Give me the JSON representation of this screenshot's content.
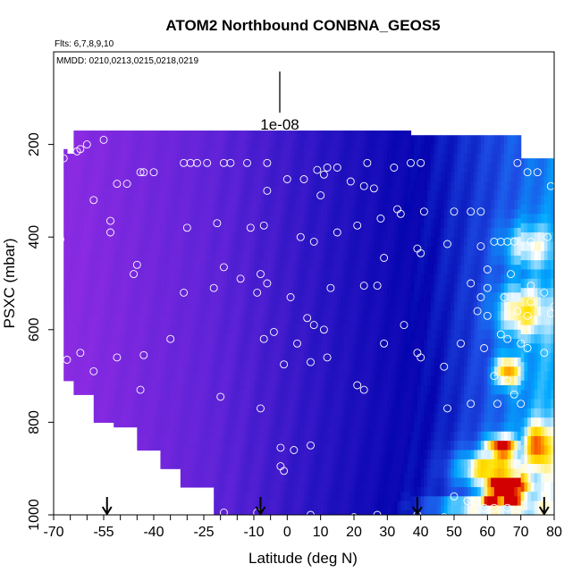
{
  "chart_data": {
    "type": "heatmap",
    "title": "ATOM2 Northbound CONBNA_GEOS5",
    "flights_note": "Flts: 6,7,8,9,10",
    "dates_note": "MMDD: 0210,0213,0215,0218,0219",
    "xlabel": "Latitude (deg N)",
    "ylabel": "PSXC (mbar)",
    "xlim": [
      -70,
      80
    ],
    "ylim": [
      1000,
      0
    ],
    "x_ticks": [
      -70,
      -55,
      -40,
      -25,
      -10,
      0,
      10,
      20,
      30,
      40,
      50,
      60,
      70,
      80
    ],
    "x_tick_labels": [
      "-70",
      "-55",
      "-40",
      "-25",
      "-10",
      "0",
      "10",
      "20",
      "30",
      "40",
      "50",
      "60",
      "70",
      "80"
    ],
    "x_minor_ticks": [
      -65,
      -60,
      -50,
      -45,
      -35,
      -30,
      -20,
      -15,
      -5
    ],
    "y_ticks": [
      200,
      400,
      600,
      800,
      1000
    ],
    "y_tick_labels": [
      "200",
      "400",
      "600",
      "800",
      "1000"
    ],
    "scale_bar_label": "1e-08",
    "arrow_latitudes": [
      -54,
      -8,
      39,
      77
    ],
    "colors": {
      "low": "#8a2be2",
      "mid": "#1010c0",
      "high": "#ff3300",
      "text": "#000000"
    },
    "columns": [
      {
        "lat0": -67,
        "lat1": -66,
        "ptop": 210,
        "pbot": 710
      },
      {
        "lat0": -66,
        "lat1": -64,
        "ptop": 220,
        "pbot": 710
      },
      {
        "lat0": -64,
        "lat1": -58,
        "ptop": 170,
        "pbot": 740
      },
      {
        "lat0": -58,
        "lat1": -52,
        "ptop": 170,
        "pbot": 800
      },
      {
        "lat0": -52,
        "lat1": -45,
        "ptop": 170,
        "pbot": 810
      },
      {
        "lat0": -45,
        "lat1": -38,
        "ptop": 170,
        "pbot": 860
      },
      {
        "lat0": -38,
        "lat1": -32,
        "ptop": 170,
        "pbot": 900
      },
      {
        "lat0": -32,
        "lat1": -22,
        "ptop": 170,
        "pbot": 940
      },
      {
        "lat0": -22,
        "lat1": -16,
        "ptop": 170,
        "pbot": 1000
      },
      {
        "lat0": -16,
        "lat1": -10,
        "ptop": 170,
        "pbot": 1000
      },
      {
        "lat0": -10,
        "lat1": -4,
        "ptop": 170,
        "pbot": 1000
      },
      {
        "lat0": -4,
        "lat1": 2,
        "ptop": 170,
        "pbot": 1000
      },
      {
        "lat0": 2,
        "lat1": 8,
        "ptop": 170,
        "pbot": 1000
      },
      {
        "lat0": 8,
        "lat1": 14,
        "ptop": 170,
        "pbot": 1000
      },
      {
        "lat0": 14,
        "lat1": 20,
        "ptop": 170,
        "pbot": 1000
      },
      {
        "lat0": 20,
        "lat1": 26,
        "ptop": 170,
        "pbot": 1000
      },
      {
        "lat0": 26,
        "lat1": 32,
        "ptop": 170,
        "pbot": 1000
      },
      {
        "lat0": 32,
        "lat1": 37,
        "ptop": 170,
        "pbot": 1000
      },
      {
        "lat0": 37,
        "lat1": 44,
        "ptop": 180,
        "pbot": 1000
      },
      {
        "lat0": 44,
        "lat1": 50,
        "ptop": 180,
        "pbot": 1000
      },
      {
        "lat0": 50,
        "lat1": 56,
        "ptop": 180,
        "pbot": 1000
      },
      {
        "lat0": 56,
        "lat1": 62,
        "ptop": 180,
        "pbot": 1000
      },
      {
        "lat0": 62,
        "lat1": 66,
        "ptop": 180,
        "pbot": 1000
      },
      {
        "lat0": 66,
        "lat1": 70,
        "ptop": 180,
        "pbot": 1000
      },
      {
        "lat0": 70,
        "lat1": 74,
        "ptop": 230,
        "pbot": 1000
      },
      {
        "lat0": 74,
        "lat1": 77,
        "ptop": 230,
        "pbot": 1000
      },
      {
        "lat0": 77,
        "lat1": 80,
        "ptop": 230,
        "pbot": 1000
      },
      {
        "lat0": 80,
        "lat1": 81,
        "ptop": 230,
        "pbot": 1000
      }
    ],
    "hotspots": [
      {
        "lat": 65,
        "p": 935,
        "dlat": 6,
        "dp": 25,
        "value": 1.0
      },
      {
        "lat": 61,
        "p": 965,
        "dlat": 3,
        "dp": 20,
        "value": 0.9
      },
      {
        "lat": 67,
        "p": 965,
        "dlat": 3,
        "dp": 20,
        "value": 0.85
      },
      {
        "lat": 64,
        "p": 855,
        "dlat": 5,
        "dp": 25,
        "value": 0.7
      },
      {
        "lat": 66,
        "p": 690,
        "dlat": 4,
        "dp": 35,
        "value": 0.55
      },
      {
        "lat": 60,
        "p": 900,
        "dlat": 10,
        "dp": 40,
        "value": 0.5
      },
      {
        "lat": 70,
        "p": 560,
        "dlat": 8,
        "dp": 60,
        "value": 0.4
      },
      {
        "lat": 75,
        "p": 850,
        "dlat": 4,
        "dp": 50,
        "value": 0.45
      },
      {
        "lat": 55,
        "p": 980,
        "dlat": 14,
        "dp": 20,
        "value": 0.4
      },
      {
        "lat": 72,
        "p": 420,
        "dlat": 8,
        "dp": 50,
        "value": 0.3
      }
    ],
    "samples": [
      [
        -55,
        190
      ],
      [
        -60,
        200
      ],
      [
        -62,
        210
      ],
      [
        -63,
        215
      ],
      [
        -67,
        230
      ],
      [
        -58,
        320
      ],
      [
        -68,
        405
      ],
      [
        -51,
        285
      ],
      [
        -48,
        285
      ],
      [
        -44,
        260
      ],
      [
        -43,
        260
      ],
      [
        -40,
        260
      ],
      [
        -31,
        240
      ],
      [
        -29,
        240
      ],
      [
        -27,
        240
      ],
      [
        -24,
        240
      ],
      [
        -19,
        240
      ],
      [
        -17,
        240
      ],
      [
        -12,
        240
      ],
      [
        -6,
        240
      ],
      [
        0,
        275
      ],
      [
        5,
        275
      ],
      [
        9,
        255
      ],
      [
        11,
        265
      ],
      [
        12,
        250
      ],
      [
        15,
        250
      ],
      [
        19,
        280
      ],
      [
        -6,
        300
      ],
      [
        10,
        310
      ],
      [
        23,
        290
      ],
      [
        26,
        295
      ],
      [
        32,
        250
      ],
      [
        37,
        240
      ],
      [
        40,
        240
      ],
      [
        24,
        240
      ],
      [
        -53,
        365
      ],
      [
        -30,
        380
      ],
      [
        -21,
        370
      ],
      [
        -7,
        375
      ],
      [
        -11,
        380
      ],
      [
        4,
        400
      ],
      [
        8,
        410
      ],
      [
        15,
        390
      ],
      [
        21,
        375
      ],
      [
        28,
        360
      ],
      [
        33,
        340
      ],
      [
        34,
        350
      ],
      [
        41,
        345
      ],
      [
        50,
        345
      ],
      [
        55,
        345
      ],
      [
        58,
        345
      ],
      [
        69,
        240
      ],
      [
        72,
        260
      ],
      [
        75,
        260
      ],
      [
        79,
        290
      ],
      [
        -53,
        390
      ],
      [
        -45,
        460
      ],
      [
        -46,
        480
      ],
      [
        -19,
        465
      ],
      [
        -14,
        490
      ],
      [
        -8,
        480
      ],
      [
        -6,
        500
      ],
      [
        1,
        530
      ],
      [
        6,
        575
      ],
      [
        8,
        590
      ],
      [
        11,
        600
      ],
      [
        -22,
        510
      ],
      [
        -31,
        520
      ],
      [
        13,
        510
      ],
      [
        23,
        505
      ],
      [
        27,
        505
      ],
      [
        29,
        445
      ],
      [
        39,
        425
      ],
      [
        40,
        435
      ],
      [
        48,
        415
      ],
      [
        58,
        420
      ],
      [
        62,
        410
      ],
      [
        64,
        410
      ],
      [
        66,
        410
      ],
      [
        68,
        410
      ],
      [
        73,
        410
      ],
      [
        78,
        400
      ],
      [
        55,
        500
      ],
      [
        60,
        470
      ],
      [
        67,
        480
      ],
      [
        60,
        510
      ],
      [
        73,
        505
      ],
      [
        77,
        520
      ],
      [
        80,
        550
      ],
      [
        58,
        530
      ],
      [
        65,
        530
      ],
      [
        73,
        540
      ],
      [
        57,
        560
      ],
      [
        60,
        570
      ],
      [
        69,
        560
      ],
      [
        72,
        570
      ],
      [
        79,
        565
      ],
      [
        -9,
        520
      ],
      [
        -35,
        620
      ],
      [
        -4,
        605
      ],
      [
        -7,
        620
      ],
      [
        -1,
        675
      ],
      [
        3,
        630
      ],
      [
        7,
        670
      ],
      [
        12,
        660
      ],
      [
        -62,
        650
      ],
      [
        -58,
        690
      ],
      [
        -66,
        665
      ],
      [
        -43,
        655
      ],
      [
        -44,
        730
      ],
      [
        -51,
        660
      ],
      [
        -20,
        745
      ],
      [
        -8,
        770
      ],
      [
        -2,
        855
      ],
      [
        2,
        860
      ],
      [
        7,
        850
      ],
      [
        21,
        720
      ],
      [
        23,
        730
      ],
      [
        29,
        630
      ],
      [
        35,
        590
      ],
      [
        39,
        650
      ],
      [
        40,
        660
      ],
      [
        47,
        680
      ],
      [
        52,
        630
      ],
      [
        59,
        640
      ],
      [
        64,
        610
      ],
      [
        66,
        620
      ],
      [
        70,
        630
      ],
      [
        72,
        640
      ],
      [
        77,
        650
      ],
      [
        62,
        700
      ],
      [
        66,
        710
      ],
      [
        68,
        740
      ],
      [
        48,
        770
      ],
      [
        55,
        760
      ],
      [
        63,
        760
      ],
      [
        70,
        760
      ],
      [
        -19,
        995
      ],
      [
        -9,
        995
      ],
      [
        -2,
        895
      ],
      [
        -1,
        905
      ],
      [
        7,
        1000
      ],
      [
        20,
        1005
      ],
      [
        27,
        1000
      ],
      [
        39,
        1000
      ],
      [
        47,
        1005
      ],
      [
        50,
        960
      ],
      [
        54,
        970
      ],
      [
        59,
        985
      ],
      [
        62,
        985
      ],
      [
        66,
        985
      ]
    ]
  }
}
